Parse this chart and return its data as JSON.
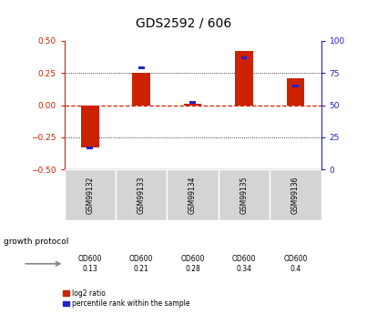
{
  "title": "GDS2592 / 606",
  "samples": [
    "GSM99132",
    "GSM99133",
    "GSM99134",
    "GSM99135",
    "GSM99136"
  ],
  "log2_ratio": [
    -0.33,
    0.25,
    0.01,
    0.42,
    0.21
  ],
  "percentile_rank": [
    17,
    79,
    52,
    87,
    65
  ],
  "growth_protocol_labels": [
    [
      "OD600",
      "0.13"
    ],
    [
      "OD600",
      "0.21"
    ],
    [
      "OD600",
      "0.28"
    ],
    [
      "OD600",
      "0.34"
    ],
    [
      "OD600",
      "0.4"
    ]
  ],
  "growth_protocol_colors": [
    "#e8ffe8",
    "#ccffcc",
    "#aaffaa",
    "#66ee66",
    "#33dd33"
  ],
  "sample_bg_color": "#d4d4d4",
  "bar_color_red": "#cc2200",
  "bar_color_blue": "#2222cc",
  "left_axis_color": "#cc2200",
  "right_axis_color": "#2222cc",
  "ylim_left": [
    -0.5,
    0.5
  ],
  "ylim_right": [
    0,
    100
  ],
  "yticks_left": [
    -0.5,
    -0.25,
    0,
    0.25,
    0.5
  ],
  "yticks_right": [
    0,
    25,
    50,
    75,
    100
  ],
  "bar_width": 0.35,
  "blue_bar_width": 0.12
}
